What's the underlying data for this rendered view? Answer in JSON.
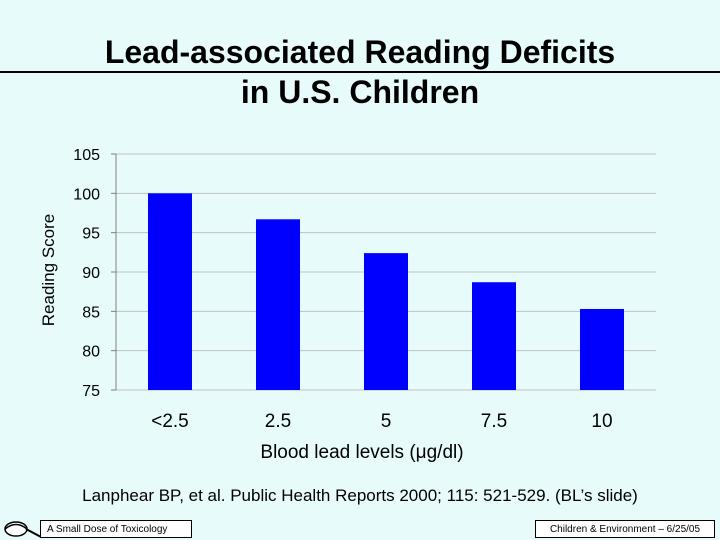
{
  "slide": {
    "title_line1": "Lead-associated Reading Deficits",
    "title_line2": "in U.S. Children",
    "citation": "Lanphear BP, et al. Public Health Reports 2000; 115: 521-529. (BL’s slide)",
    "footer_left": "A Small Dose of Toxicology",
    "footer_right": "Children & Environment – 6/25/05"
  },
  "colors": {
    "bar": "#0000ff",
    "background": "#e8fbfb",
    "grid": "#c0c0c0"
  },
  "chart_data": {
    "type": "bar",
    "title": "Lead-associated Reading Deficits in U.S. Children",
    "xlabel": "Blood lead levels (μg/dl)",
    "ylabel": "Reading Score",
    "categories": [
      "<2.5",
      "2.5",
      "5",
      "7.5",
      "10"
    ],
    "values": [
      100,
      96.7,
      92.4,
      88.7,
      85.3
    ],
    "ylim": [
      75,
      105
    ],
    "yticks": [
      "105",
      "100",
      "95",
      "90",
      "85",
      "80",
      "75"
    ],
    "grid": true,
    "legend": "none"
  }
}
